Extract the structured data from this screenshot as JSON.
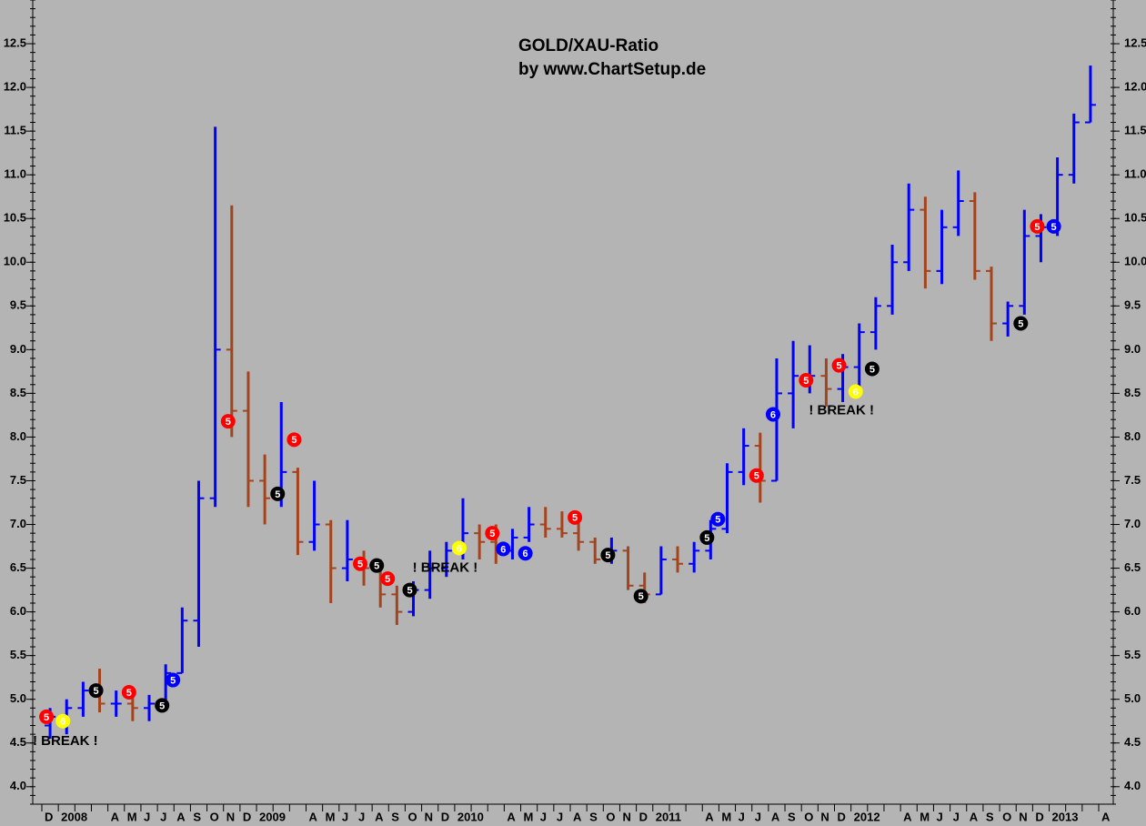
{
  "chart_data": {
    "type": "ohlc",
    "title": "GOLD/XAU-Ratio",
    "subtitle": "by www.ChartSetup.de",
    "categories": [
      "D",
      "2008",
      null,
      null,
      "A",
      "M",
      "J",
      "J",
      "A",
      "S",
      "O",
      "N",
      "D",
      "2009",
      null,
      null,
      "A",
      "M",
      "J",
      "J",
      "A",
      "S",
      "O",
      "N",
      "D",
      "2010",
      null,
      null,
      "A",
      "M",
      "J",
      "J",
      "A",
      "S",
      "O",
      "N",
      "D",
      "2011",
      null,
      null,
      "A",
      "M",
      "J",
      "J",
      "A",
      "S",
      "O",
      "N",
      "D",
      "2012",
      null,
      null,
      "A",
      "M",
      "J",
      "J",
      "A",
      "S",
      "O",
      "N",
      "D",
      "2013",
      null,
      null,
      "A"
    ],
    "open": [
      4.7,
      4.8,
      4.9,
      5.1,
      4.95,
      4.95,
      4.9,
      4.95,
      5.3,
      5.9,
      7.3,
      9.0,
      8.3,
      7.5,
      7.3,
      7.6,
      6.8,
      7.0,
      6.5,
      6.6,
      6.5,
      6.2,
      6.0,
      6.25,
      6.5,
      6.7,
      6.9,
      6.8,
      6.7,
      6.85,
      7.0,
      6.95,
      6.9,
      6.8,
      6.6,
      6.7,
      6.3,
      6.2,
      6.6,
      6.55,
      6.7,
      6.95,
      7.6,
      7.9,
      7.5,
      8.5,
      8.7,
      8.7,
      8.55,
      8.8,
      9.2,
      9.5,
      10.0,
      10.6,
      9.9,
      10.4,
      10.7,
      9.9,
      9.3,
      9.5,
      10.3,
      10.4,
      11.0,
      11.6,
      null
    ],
    "high": [
      4.9,
      5.0,
      5.2,
      5.35,
      5.1,
      5.1,
      5.05,
      5.4,
      6.05,
      7.5,
      11.55,
      10.65,
      8.75,
      7.8,
      8.4,
      7.65,
      7.5,
      7.05,
      7.05,
      6.7,
      6.6,
      6.3,
      6.35,
      6.7,
      6.8,
      7.3,
      7.0,
      7.0,
      6.95,
      7.2,
      7.2,
      7.15,
      7.1,
      6.85,
      6.85,
      6.75,
      6.45,
      6.75,
      6.75,
      6.8,
      7.05,
      7.7,
      8.1,
      8.05,
      8.9,
      9.1,
      9.05,
      8.9,
      8.95,
      9.3,
      9.6,
      10.2,
      10.9,
      10.75,
      10.6,
      11.05,
      10.8,
      9.95,
      9.55,
      10.6,
      10.55,
      11.2,
      11.7,
      12.25,
      null
    ],
    "low": [
      4.55,
      4.6,
      4.8,
      4.85,
      4.8,
      4.75,
      4.75,
      4.9,
      5.3,
      5.6,
      7.2,
      8.0,
      7.2,
      7.0,
      7.2,
      6.65,
      6.7,
      6.1,
      6.35,
      6.3,
      6.05,
      5.85,
      5.95,
      6.15,
      6.4,
      6.6,
      6.6,
      6.55,
      6.6,
      6.8,
      6.85,
      6.85,
      6.7,
      6.55,
      6.55,
      6.25,
      6.1,
      6.2,
      6.45,
      6.45,
      6.6,
      6.9,
      7.45,
      7.25,
      7.5,
      8.1,
      8.5,
      8.35,
      8.4,
      8.5,
      9.0,
      9.4,
      9.9,
      9.7,
      9.75,
      10.3,
      9.8,
      9.1,
      9.15,
      9.4,
      10.0,
      10.3,
      10.9,
      11.6,
      null
    ],
    "close": [
      4.8,
      4.9,
      5.1,
      4.95,
      4.95,
      4.9,
      4.95,
      5.3,
      5.9,
      7.3,
      9.0,
      8.3,
      7.5,
      7.3,
      7.6,
      6.8,
      7.0,
      6.5,
      6.6,
      6.5,
      6.2,
      6.0,
      6.25,
      6.5,
      6.7,
      6.9,
      6.8,
      6.7,
      6.85,
      7.0,
      6.95,
      6.9,
      6.8,
      6.6,
      6.7,
      6.3,
      6.2,
      6.6,
      6.55,
      6.7,
      6.95,
      7.6,
      7.9,
      7.5,
      8.5,
      8.7,
      8.7,
      8.55,
      8.8,
      9.2,
      9.5,
      10.0,
      10.6,
      9.9,
      10.4,
      10.7,
      9.9,
      9.3,
      9.5,
      10.3,
      10.4,
      11.0,
      11.6,
      11.8,
      null
    ],
    "up_color": "#0000ff",
    "down_color": "#a5441c",
    "ylim": [
      3.8,
      13.0
    ],
    "yticks": [
      {
        "value": 4,
        "label": "4.0"
      },
      4.5,
      {
        "value": 5,
        "label": "5.0"
      },
      5.5,
      {
        "value": 6,
        "label": "6.0"
      },
      6.5,
      {
        "value": 7,
        "label": "7.0"
      },
      7.5,
      {
        "value": 8,
        "label": "8.0"
      },
      8.5,
      {
        "value": 9,
        "label": "9.0"
      },
      9.5,
      {
        "value": 10,
        "label": "10.0"
      },
      10.5,
      {
        "value": 11,
        "label": "11.0"
      },
      11.5,
      {
        "value": 12,
        "label": "12.0"
      },
      12.5
    ],
    "markers": [
      {
        "category": 0,
        "y": 4.8,
        "label": "5",
        "color": "#ff0000"
      },
      {
        "category": 1,
        "y": 4.75,
        "label": "6",
        "color": "#ffff00"
      },
      {
        "category": 3,
        "y": 5.1,
        "label": "5",
        "color": "#000000"
      },
      {
        "category": 5,
        "y": 5.08,
        "label": "5",
        "color": "#ff0000"
      },
      {
        "category": 7,
        "y": 4.93,
        "label": "5",
        "color": "#000000"
      },
      {
        "category": 7,
        "y": 5.22,
        "label": "5",
        "color": "#0000ff"
      },
      {
        "category": 11,
        "y": 8.18,
        "label": "5",
        "color": "#ff0000"
      },
      {
        "category": 14,
        "y": 7.35,
        "label": "5",
        "color": "#000000"
      },
      {
        "category": 15,
        "y": 7.97,
        "label": "5",
        "color": "#ff0000"
      },
      {
        "category": 19,
        "y": 6.55,
        "label": "5",
        "color": "#ff0000"
      },
      {
        "category": 20,
        "y": 6.53,
        "label": "5",
        "color": "#000000"
      },
      {
        "category": 20,
        "y": 6.38,
        "label": "5",
        "color": "#ff0000"
      },
      {
        "category": 22,
        "y": 6.25,
        "label": "5",
        "color": "#000000"
      },
      {
        "category": 25,
        "y": 6.73,
        "label": "6",
        "color": "#ffff00"
      },
      {
        "category": 27,
        "y": 6.9,
        "label": "5",
        "color": "#ff0000"
      },
      {
        "category": 27,
        "y": 6.72,
        "label": "6",
        "color": "#0000ff"
      },
      {
        "category": 29,
        "y": 6.67,
        "label": "6",
        "color": "#0000ff"
      },
      {
        "category": 32,
        "y": 7.08,
        "label": "5",
        "color": "#ff0000"
      },
      {
        "category": 34,
        "y": 6.65,
        "label": "5",
        "color": "#000000"
      },
      {
        "category": 36,
        "y": 6.18,
        "label": "5",
        "color": "#000000"
      },
      {
        "category": 40,
        "y": 6.85,
        "label": "5",
        "color": "#000000"
      },
      {
        "category": 40,
        "y": 7.06,
        "label": "5",
        "color": "#0000ff"
      },
      {
        "category": 43,
        "y": 7.56,
        "label": "5",
        "color": "#ff0000"
      },
      {
        "category": 44,
        "y": 8.26,
        "label": "6",
        "color": "#0000ff"
      },
      {
        "category": 46,
        "y": 8.65,
        "label": "5",
        "color": "#ff0000"
      },
      {
        "category": 48,
        "y": 8.82,
        "label": "5",
        "color": "#ff0000"
      },
      {
        "category": 49,
        "y": 8.52,
        "label": "6",
        "color": "#ffff00"
      },
      {
        "category": 50,
        "y": 8.78,
        "label": "5",
        "color": "#000000"
      },
      {
        "category": 59,
        "y": 9.3,
        "label": "5",
        "color": "#000000"
      },
      {
        "category": 60,
        "y": 10.41,
        "label": "5",
        "color": "#ff0000"
      },
      {
        "category": 61,
        "y": 10.41,
        "label": "5",
        "color": "#0000ff"
      }
    ],
    "annotations": [
      {
        "category": 0,
        "y": 4.52,
        "text": "! BREAK !"
      },
      {
        "category": 23,
        "y": 6.5,
        "text": "! BREAK !"
      },
      {
        "category": 47,
        "y": 8.3,
        "text": "! BREAK !"
      }
    ]
  }
}
